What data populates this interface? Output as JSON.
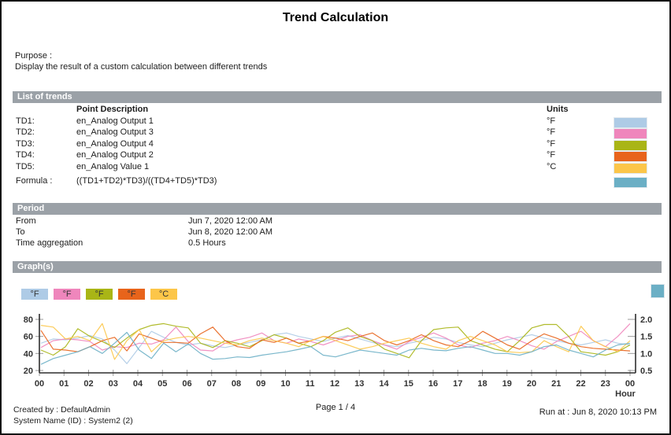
{
  "report": {
    "title": "Trend Calculation",
    "purpose_label": "Purpose :",
    "purpose_text": "Display the result of a custom calculation between different trends"
  },
  "list_of_trends": {
    "section_title": "List of trends",
    "col_point_description": "Point Description",
    "col_units": "Units",
    "rows": [
      {
        "id": "TD1:",
        "description": "en_Analog Output 1",
        "unit": "°F",
        "color": "#AECBE6"
      },
      {
        "id": "TD2:",
        "description": "en_Analog Output 3",
        "unit": "°F",
        "color": "#EF86BC"
      },
      {
        "id": "TD3:",
        "description": "en_Analog Output 4",
        "unit": "°F",
        "color": "#A9B516"
      },
      {
        "id": "TD4:",
        "description": "en_Analog Output 2",
        "unit": "°F",
        "color": "#E8641B"
      },
      {
        "id": "TD5:",
        "description": "en_Analog Value 1",
        "unit": "°C",
        "color": "#FCC649"
      }
    ],
    "formula_label": "Formula :",
    "formula_expression": "((TD1+TD2)*TD3)/((TD4+TD5)*TD3)",
    "formula_color": "#6BAFC5"
  },
  "period": {
    "section_title": "Period",
    "rows": [
      {
        "label": "From",
        "value": "Jun 7, 2020 12:00 AM"
      },
      {
        "label": "To",
        "value": "Jun 8, 2020 12:00 AM"
      },
      {
        "label": "Time aggregation",
        "value": "0.5 Hours"
      }
    ]
  },
  "graphs": {
    "section_title": "Graph(s)",
    "legend": [
      {
        "label": "°F",
        "color": "#AECBE6"
      },
      {
        "label": "°F",
        "color": "#EF86BC"
      },
      {
        "label": "°F",
        "color": "#A9B516"
      },
      {
        "label": "°F",
        "color": "#E8641B"
      },
      {
        "label": "°C",
        "color": "#FCC649"
      }
    ],
    "formula_swatch_color": "#6BAFC5"
  },
  "chart_data": {
    "type": "line",
    "x_label": "Hour",
    "x_tick_labels": [
      "00",
      "01",
      "02",
      "03",
      "04",
      "05",
      "06",
      "07",
      "08",
      "09",
      "10",
      "11",
      "12",
      "13",
      "14",
      "15",
      "16",
      "17",
      "18",
      "19",
      "20",
      "21",
      "22",
      "23",
      "00"
    ],
    "y_left": {
      "ticks": [
        20,
        40,
        60,
        80
      ],
      "range": [
        20,
        80
      ]
    },
    "y_right": {
      "ticks": [
        0.5,
        1.0,
        1.5,
        2.0
      ],
      "range": [
        0.5,
        2.0
      ]
    },
    "aggregation_hours": 0.5,
    "series": [
      {
        "name": "TD1 en_Analog Output 1 (°F)",
        "color": "#AECBE6",
        "axis": "left",
        "values": [
          52,
          57,
          56,
          58,
          61,
          57,
          44,
          28,
          47,
          66,
          59,
          53,
          50,
          52,
          49,
          47,
          50,
          53,
          56,
          62,
          64,
          60,
          57,
          54,
          58,
          61,
          57,
          53,
          50,
          48,
          52,
          55,
          59,
          57,
          53,
          50,
          48,
          52,
          56,
          59,
          62,
          58,
          55,
          52,
          50,
          53,
          56,
          52,
          50
        ]
      },
      {
        "name": "TD2 en_Analog Output 3 (°F)",
        "color": "#EF86BC",
        "axis": "left",
        "values": [
          47,
          55,
          57,
          56,
          54,
          44,
          48,
          47,
          52,
          51,
          56,
          71,
          54,
          44,
          43,
          52,
          56,
          59,
          64,
          55,
          52,
          57,
          54,
          50,
          55,
          60,
          62,
          55,
          50,
          45,
          54,
          59,
          64,
          58,
          50,
          47,
          52,
          55,
          60,
          55,
          49,
          45,
          54,
          60,
          66,
          55,
          48,
          60,
          75
        ]
      },
      {
        "name": "TD3 en_Analog Output 4 (°F)",
        "color": "#A9B516",
        "axis": "left",
        "values": [
          44,
          38,
          48,
          69,
          60,
          54,
          47,
          58,
          68,
          73,
          75,
          72,
          70,
          52,
          47,
          55,
          52,
          48,
          55,
          62,
          58,
          52,
          48,
          55,
          65,
          70,
          60,
          55,
          45,
          40,
          35,
          55,
          68,
          70,
          71,
          55,
          50,
          45,
          42,
          55,
          70,
          74,
          74,
          60,
          42,
          40,
          38,
          42,
          50
        ]
      },
      {
        "name": "TD4 en_Analog Output 2 (°F)",
        "color": "#E8641B",
        "axis": "left",
        "values": [
          67,
          45,
          44,
          42,
          48,
          55,
          59,
          43,
          63,
          58,
          53,
          53,
          52,
          63,
          71,
          55,
          48,
          46,
          56,
          53,
          58,
          52,
          55,
          60,
          58,
          55,
          60,
          64,
          55,
          50,
          55,
          62,
          55,
          50,
          48,
          55,
          66,
          58,
          50,
          45,
          55,
          63,
          58,
          52,
          48,
          46,
          45,
          44,
          43
        ]
      },
      {
        "name": "TD5 en_Analog Value 1 (°C)",
        "color": "#FCC649",
        "axis": "left",
        "values": [
          73,
          71,
          57,
          60,
          55,
          75,
          33,
          55,
          68,
          42,
          55,
          58,
          60,
          58,
          55,
          52,
          50,
          55,
          58,
          55,
          52,
          48,
          55,
          60,
          55,
          50,
          45,
          48,
          52,
          55,
          58,
          52,
          48,
          45,
          55,
          60,
          55,
          50,
          42,
          41,
          42,
          55,
          48,
          42,
          72,
          55,
          48,
          42,
          55
        ]
      },
      {
        "name": "Formula ((TD1+TD2)*TD3)/((TD4+TD5)*TD3)",
        "color": "#6BAFC5",
        "axis": "right",
        "values": [
          0.68,
          0.85,
          0.95,
          1.05,
          1.2,
          1.0,
          1.3,
          1.62,
          1.1,
          0.85,
          1.3,
          1.05,
          1.28,
          1.0,
          0.83,
          0.85,
          0.9,
          0.88,
          0.95,
          1.0,
          1.05,
          1.12,
          1.2,
          0.95,
          0.9,
          1.0,
          1.1,
          1.05,
          1.0,
          0.95,
          1.1,
          1.15,
          1.1,
          1.08,
          1.15,
          1.2,
          1.1,
          1.0,
          1.0,
          0.95,
          1.05,
          1.2,
          1.25,
          1.1,
          1.0,
          0.9,
          1.1,
          1.25,
          1.3
        ]
      }
    ]
  },
  "footer": {
    "created_by": "Created by : DefaultAdmin",
    "system_name": "System Name (ID) : System2 (2)",
    "page": "Page  1 / 4",
    "run_at": "Run at : Jun 8, 2020 10:13 PM"
  }
}
